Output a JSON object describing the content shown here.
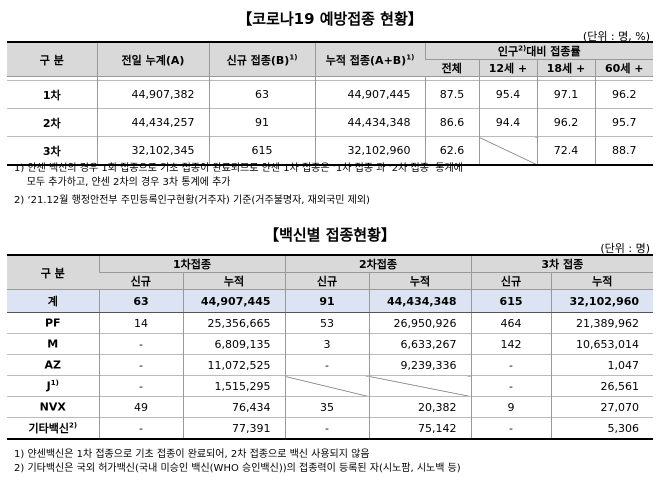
{
  "section1": {
    "title": "【코로나19 예방접종 현황】",
    "unit": "(단위 : 명, %)",
    "headers": {
      "category": "구 분",
      "prev_total": "전일 누계(A)",
      "new": "신규 접종(B)",
      "new_sup": "1)",
      "cumulative": "누적 접종(A+B)",
      "cumulative_sup": "1)",
      "rate_group": "인구",
      "rate_group_sup": "2)",
      "rate_group_tail": "대비 접종률",
      "rate_all": "전체",
      "rate_12": "12세 +",
      "rate_18": "18세 +",
      "rate_60": "60세 +"
    },
    "rows": [
      {
        "label": "1차",
        "prev": "44,907,382",
        "new": "63",
        "cum": "44,907,445",
        "all": "87.5",
        "r12": "95.4",
        "r18": "97.1",
        "r60": "96.2"
      },
      {
        "label": "2차",
        "prev": "44,434,257",
        "new": "91",
        "cum": "44,434,348",
        "all": "86.6",
        "r12": "94.4",
        "r18": "96.2",
        "r60": "95.7"
      },
      {
        "label": "3차",
        "prev": "32,102,345",
        "new": "615",
        "cum": "32,102,960",
        "all": "62.6",
        "r12": "",
        "r18": "72.4",
        "r60": "88.7"
      }
    ],
    "notes": [
      "1) 얀센 백신의 경우 1회 접종으로 기초 접종이 완료되므로 얀센 1차 접종은 ‘1차 접종’과 ‘2차 접종’ 통계에",
      "    모두 추가하고, 얀센 2차의 경우 3차 통계에 추가",
      "2) ‘21.12월 행정안전부 주민등록인구현황(거주자) 기준(거주불명자, 재외국민 제외)"
    ]
  },
  "section2": {
    "title": "【백신별 접종현황】",
    "unit": "(단위 : 명)",
    "headers": {
      "category": "구 분",
      "dose1": "1차접종",
      "dose2": "2차접종",
      "dose3": "3차 접종",
      "new": "신규",
      "cum": "누적"
    },
    "rows": [
      {
        "label": "계",
        "sup": "",
        "d1n": "63",
        "d1c": "44,907,445",
        "d2n": "91",
        "d2c": "44,434,348",
        "d3n": "615",
        "d3c": "32,102,960"
      },
      {
        "label": "PF",
        "sup": "",
        "d1n": "14",
        "d1c": "25,356,665",
        "d2n": "53",
        "d2c": "26,950,926",
        "d3n": "464",
        "d3c": "21,389,962"
      },
      {
        "label": "M",
        "sup": "",
        "d1n": "-",
        "d1c": "6,809,135",
        "d2n": "3",
        "d2c": "6,633,267",
        "d3n": "142",
        "d3c": "10,653,014"
      },
      {
        "label": "AZ",
        "sup": "",
        "d1n": "-",
        "d1c": "11,072,525",
        "d2n": "-",
        "d2c": "9,239,336",
        "d3n": "-",
        "d3c": "1,047"
      },
      {
        "label": "J",
        "sup": "1)",
        "d1n": "-",
        "d1c": "1,515,295",
        "d2n": "",
        "d2c": "",
        "d3n": "-",
        "d3c": "26,561"
      },
      {
        "label": "NVX",
        "sup": "",
        "d1n": "49",
        "d1c": "76,434",
        "d2n": "35",
        "d2c": "20,382",
        "d3n": "9",
        "d3c": "27,070"
      },
      {
        "label": "기타백신",
        "sup": "2)",
        "d1n": "-",
        "d1c": "77,391",
        "d2n": "-",
        "d2c": "75,142",
        "d3n": "-",
        "d3c": "5,306"
      }
    ],
    "notes": [
      "1) 얀센백신은 1차 접종으로 기초 접종이 완료되어, 2차 접종으로 백신 사용되지 않음",
      "2) 기타백신은 국외 허가백신(국내 미승인 백신(WHO 승인백신))의 접종력이 등록된 자(시노팜, 시노백 등)"
    ]
  }
}
